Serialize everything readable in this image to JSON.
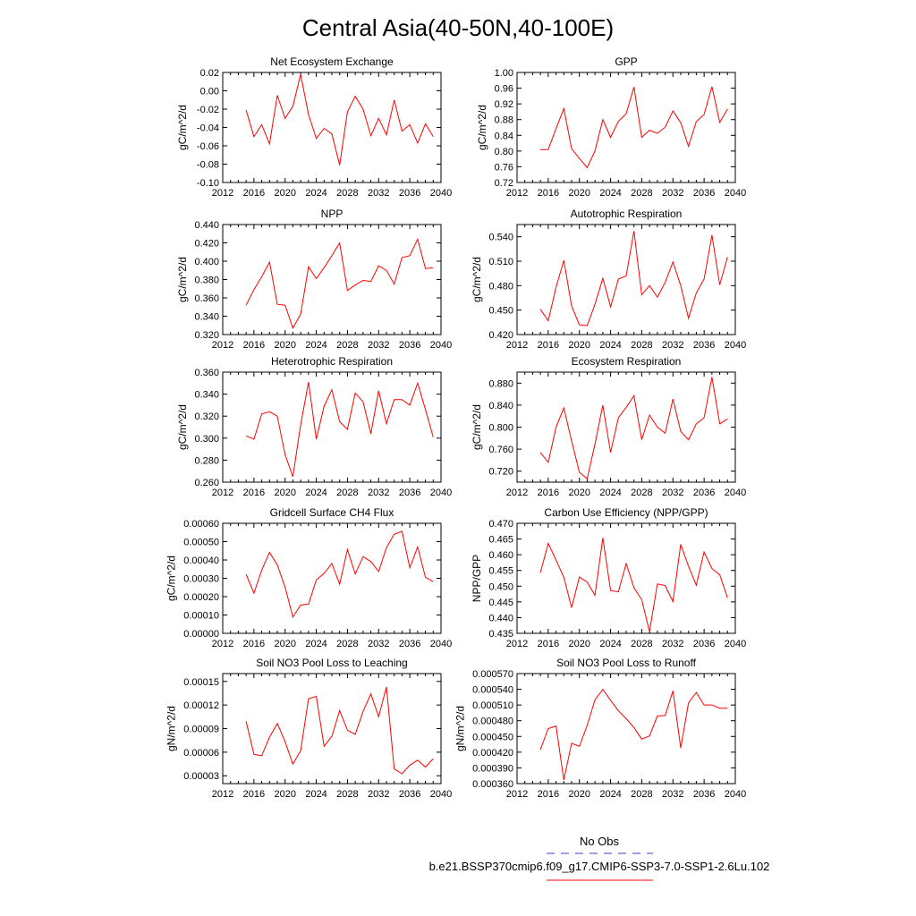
{
  "figure": {
    "title": "Central Asia(40-50N,40-100E)"
  },
  "legend": {
    "entries": [
      {
        "label": "No Obs",
        "color": "#3b3bd0",
        "dashed": true
      },
      {
        "label": "b.e21.BSSP370cmip6.f09_g17.CMIP6-SSP3-7.0-SSP1-2.6Lu.102",
        "color": "#ff0000",
        "dashed": false
      }
    ]
  },
  "chart_data": [
    {
      "type": "line",
      "title": "Net Ecosystem Exchange",
      "ylabel": "gC/m^2/d",
      "xlim": [
        2012,
        2040
      ],
      "xticks": [
        "2012",
        "2016",
        "2020",
        "2024",
        "2028",
        "2032",
        "2036",
        "2040"
      ],
      "ylim": [
        -0.1,
        0.02
      ],
      "yticks": [
        "-0.10",
        "-0.08",
        "-0.06",
        "-0.04",
        "-0.02",
        "0.00",
        "0.02"
      ],
      "series": [
        {
          "color": "#ff0000",
          "x": [
            2015,
            2016,
            2017,
            2018,
            2019,
            2020,
            2021,
            2022,
            2023,
            2024,
            2025,
            2026,
            2027,
            2028,
            2029,
            2030,
            2031,
            2032,
            2033,
            2034,
            2035,
            2036,
            2037,
            2038,
            2039
          ],
          "y": [
            -0.021,
            -0.05,
            -0.037,
            -0.058,
            -0.005,
            -0.03,
            -0.017,
            0.018,
            -0.026,
            -0.052,
            -0.041,
            -0.047,
            -0.081,
            -0.023,
            -0.006,
            -0.02,
            -0.049,
            -0.03,
            -0.048,
            -0.01,
            -0.044,
            -0.037,
            -0.057,
            -0.036,
            -0.05
          ]
        }
      ]
    },
    {
      "type": "line",
      "title": "GPP",
      "ylabel": "gC/m^2/d",
      "xlim": [
        2012,
        2040
      ],
      "xticks": [
        "2012",
        "2016",
        "2020",
        "2024",
        "2028",
        "2032",
        "2036",
        "2040"
      ],
      "ylim": [
        0.72,
        1.0
      ],
      "yticks": [
        "0.72",
        "0.76",
        "0.80",
        "0.84",
        "0.88",
        "0.92",
        "0.96",
        "1.00"
      ],
      "series": [
        {
          "color": "#ff0000",
          "x": [
            2015,
            2016,
            2017,
            2018,
            2019,
            2020,
            2021,
            2022,
            2023,
            2024,
            2025,
            2026,
            2027,
            2028,
            2029,
            2030,
            2031,
            2032,
            2033,
            2034,
            2035,
            2036,
            2037,
            2038,
            2039
          ],
          "y": [
            0.803,
            0.804,
            0.857,
            0.908,
            0.806,
            0.781,
            0.758,
            0.8,
            0.88,
            0.835,
            0.876,
            0.895,
            0.963,
            0.835,
            0.853,
            0.845,
            0.861,
            0.902,
            0.872,
            0.812,
            0.875,
            0.893,
            0.964,
            0.873,
            0.907
          ]
        }
      ]
    },
    {
      "type": "line",
      "title": "NPP",
      "ylabel": "gC/m^2/d",
      "xlim": [
        2012,
        2040
      ],
      "xticks": [
        "2012",
        "2016",
        "2020",
        "2024",
        "2028",
        "2032",
        "2036",
        "2040"
      ],
      "ylim": [
        0.32,
        0.44
      ],
      "yticks": [
        "0.320",
        "0.340",
        "0.360",
        "0.380",
        "0.400",
        "0.420",
        "0.440"
      ],
      "series": [
        {
          "color": "#ff0000",
          "x": [
            2015,
            2016,
            2017,
            2018,
            2019,
            2020,
            2021,
            2022,
            2023,
            2024,
            2025,
            2026,
            2027,
            2028,
            2029,
            2030,
            2031,
            2032,
            2033,
            2034,
            2035,
            2036,
            2037,
            2038,
            2039
          ],
          "y": [
            0.352,
            0.369,
            0.383,
            0.399,
            0.353,
            0.352,
            0.327,
            0.342,
            0.394,
            0.381,
            0.393,
            0.406,
            0.42,
            0.368,
            0.374,
            0.379,
            0.378,
            0.395,
            0.39,
            0.375,
            0.404,
            0.406,
            0.424,
            0.392,
            0.393
          ]
        }
      ]
    },
    {
      "type": "line",
      "title": "Autotrophic Respiration",
      "ylabel": "gC/m^2/d",
      "xlim": [
        2012,
        2040
      ],
      "xticks": [
        "2012",
        "2016",
        "2020",
        "2024",
        "2028",
        "2032",
        "2036",
        "2040"
      ],
      "ylim": [
        0.42,
        0.555
      ],
      "yticks": [
        "0.420",
        "0.450",
        "0.480",
        "0.510",
        "0.540"
      ],
      "series": [
        {
          "color": "#ff0000",
          "x": [
            2015,
            2016,
            2017,
            2018,
            2019,
            2020,
            2021,
            2022,
            2023,
            2024,
            2025,
            2026,
            2027,
            2028,
            2029,
            2030,
            2031,
            2032,
            2033,
            2034,
            2035,
            2036,
            2037,
            2038,
            2039
          ],
          "y": [
            0.451,
            0.437,
            0.478,
            0.511,
            0.455,
            0.432,
            0.431,
            0.457,
            0.489,
            0.454,
            0.488,
            0.492,
            0.547,
            0.469,
            0.48,
            0.466,
            0.484,
            0.509,
            0.48,
            0.44,
            0.471,
            0.488,
            0.542,
            0.481,
            0.515
          ]
        }
      ]
    },
    {
      "type": "line",
      "title": "Heterotrophic Respiration",
      "ylabel": "gC/m^2/d",
      "xlim": [
        2012,
        2040
      ],
      "xticks": [
        "2012",
        "2016",
        "2020",
        "2024",
        "2028",
        "2032",
        "2036",
        "2040"
      ],
      "ylim": [
        0.26,
        0.36
      ],
      "yticks": [
        "0.260",
        "0.280",
        "0.300",
        "0.320",
        "0.340",
        "0.360"
      ],
      "series": [
        {
          "color": "#ff0000",
          "x": [
            2015,
            2016,
            2017,
            2018,
            2019,
            2020,
            2021,
            2022,
            2023,
            2024,
            2025,
            2026,
            2027,
            2028,
            2029,
            2030,
            2031,
            2032,
            2033,
            2034,
            2035,
            2036,
            2037,
            2038,
            2039
          ],
          "y": [
            0.302,
            0.299,
            0.322,
            0.324,
            0.32,
            0.285,
            0.265,
            0.312,
            0.351,
            0.299,
            0.329,
            0.344,
            0.315,
            0.308,
            0.341,
            0.333,
            0.304,
            0.343,
            0.313,
            0.335,
            0.335,
            0.33,
            0.35,
            0.326,
            0.301
          ]
        }
      ]
    },
    {
      "type": "line",
      "title": "Ecosystem Respiration",
      "ylabel": "gC/m^2/d",
      "xlim": [
        2012,
        2040
      ],
      "xticks": [
        "2012",
        "2016",
        "2020",
        "2024",
        "2028",
        "2032",
        "2036",
        "2040"
      ],
      "ylim": [
        0.7,
        0.9
      ],
      "yticks": [
        "0.720",
        "0.760",
        "0.800",
        "0.840",
        "0.880"
      ],
      "series": [
        {
          "color": "#ff0000",
          "x": [
            2015,
            2016,
            2017,
            2018,
            2019,
            2020,
            2021,
            2022,
            2023,
            2024,
            2025,
            2026,
            2027,
            2028,
            2029,
            2030,
            2031,
            2032,
            2033,
            2034,
            2035,
            2036,
            2037,
            2038,
            2039
          ],
          "y": [
            0.754,
            0.736,
            0.8,
            0.835,
            0.775,
            0.718,
            0.706,
            0.769,
            0.84,
            0.754,
            0.817,
            0.836,
            0.857,
            0.777,
            0.822,
            0.8,
            0.789,
            0.851,
            0.792,
            0.777,
            0.806,
            0.817,
            0.891,
            0.806,
            0.815
          ]
        }
      ]
    },
    {
      "type": "line",
      "title": "Gridcell Surface CH4 Flux",
      "ylabel": "gC/m^2/d",
      "xlim": [
        2012,
        2040
      ],
      "xticks": [
        "2012",
        "2016",
        "2020",
        "2024",
        "2028",
        "2032",
        "2036",
        "2040"
      ],
      "ylim": [
        0.0,
        0.0006
      ],
      "yticks": [
        "0.00000",
        "0.00010",
        "0.00020",
        "0.00030",
        "0.00040",
        "0.00050",
        "0.00060"
      ],
      "series": [
        {
          "color": "#ff0000",
          "x": [
            2015,
            2016,
            2017,
            2018,
            2019,
            2020,
            2021,
            2022,
            2023,
            2024,
            2025,
            2026,
            2027,
            2028,
            2029,
            2030,
            2031,
            2032,
            2033,
            2034,
            2035,
            2036,
            2037,
            2038,
            2039
          ],
          "y": [
            0.000322,
            0.000219,
            0.000345,
            0.000441,
            0.000373,
            0.000252,
            8.9e-05,
            0.000154,
            0.000159,
            0.000291,
            0.000327,
            0.000381,
            0.000268,
            0.000457,
            0.000324,
            0.000418,
            0.000391,
            0.000337,
            0.000467,
            0.000541,
            0.000556,
            0.000358,
            0.000471,
            0.000306,
            0.000282
          ]
        }
      ]
    },
    {
      "type": "line",
      "title": "Carbon Use Efficiency (NPP/GPP)",
      "ylabel": "NPP/GPP",
      "xlim": [
        2012,
        2040
      ],
      "xticks": [
        "2012",
        "2016",
        "2020",
        "2024",
        "2028",
        "2032",
        "2036",
        "2040"
      ],
      "ylim": [
        0.435,
        0.47
      ],
      "yticks": [
        "0.435",
        "0.440",
        "0.445",
        "0.450",
        "0.455",
        "0.460",
        "0.465",
        "0.470"
      ],
      "series": [
        {
          "color": "#ff0000",
          "x": [
            2015,
            2016,
            2017,
            2018,
            2019,
            2020,
            2021,
            2022,
            2023,
            2024,
            2025,
            2026,
            2027,
            2028,
            2029,
            2030,
            2031,
            2032,
            2033,
            2034,
            2035,
            2036,
            2037,
            2038,
            2039
          ],
          "y": [
            0.4543,
            0.4636,
            0.4583,
            0.4528,
            0.4432,
            0.4529,
            0.4513,
            0.4471,
            0.4654,
            0.4486,
            0.4482,
            0.4572,
            0.4495,
            0.4457,
            0.4355,
            0.4507,
            0.4502,
            0.4451,
            0.4633,
            0.4563,
            0.4503,
            0.4609,
            0.4556,
            0.4536,
            0.4463
          ]
        }
      ]
    },
    {
      "type": "line",
      "title": "Soil NO3 Pool Loss to Leaching",
      "ylabel": "gN/m^2/d",
      "xlim": [
        2012,
        2040
      ],
      "xticks": [
        "2012",
        "2016",
        "2020",
        "2024",
        "2028",
        "2032",
        "2036",
        "2040"
      ],
      "ylim": [
        2e-05,
        0.00016
      ],
      "yticks": [
        "0.00003",
        "0.00006",
        "0.00009",
        "0.00012",
        "0.00015"
      ],
      "series": [
        {
          "color": "#ff0000",
          "x": [
            2015,
            2016,
            2017,
            2018,
            2019,
            2020,
            2021,
            2022,
            2023,
            2024,
            2025,
            2026,
            2027,
            2028,
            2029,
            2030,
            2031,
            2032,
            2033,
            2034,
            2035,
            2036,
            2037,
            2038,
            2039
          ],
          "y": [
            9.95e-05,
            5.71e-05,
            5.56e-05,
            7.91e-05,
            9.65e-05,
            7.34e-05,
            4.48e-05,
            6.18e-05,
            0.000128,
            0.000131,
            6.75e-05,
            8.02e-05,
            0.000113,
            8.8e-05,
            8.26e-05,
            0.000112,
            0.000134,
            0.000105,
            0.000143,
            3.87e-05,
            3.25e-05,
            4.34e-05,
            4.98e-05,
            4.11e-05,
            5.18e-05
          ]
        }
      ]
    },
    {
      "type": "line",
      "title": "Soil NO3 Pool Loss to Runoff",
      "ylabel": "gN/m^2/d",
      "xlim": [
        2012,
        2040
      ],
      "xticks": [
        "2012",
        "2016",
        "2020",
        "2024",
        "2028",
        "2032",
        "2036",
        "2040"
      ],
      "ylim": [
        0.00036,
        0.00057
      ],
      "yticks": [
        "0.000360",
        "0.000390",
        "0.000420",
        "0.000450",
        "0.000480",
        "0.000510",
        "0.000540",
        "0.000570"
      ],
      "series": [
        {
          "color": "#ff0000",
          "x": [
            2015,
            2016,
            2017,
            2018,
            2019,
            2020,
            2021,
            2022,
            2023,
            2024,
            2025,
            2026,
            2027,
            2028,
            2029,
            2030,
            2031,
            2032,
            2033,
            2034,
            2035,
            2036,
            2037,
            2038,
            2039
          ],
          "y": [
            0.000425,
            0.000465,
            0.00047,
            0.000367,
            0.000437,
            0.000431,
            0.000471,
            0.00052,
            0.00054,
            0.000519,
            0.000499,
            0.000484,
            0.000467,
            0.000445,
            0.000451,
            0.000489,
            0.00049,
            0.000537,
            0.000428,
            0.000514,
            0.000534,
            0.00051,
            0.00051,
            0.000504,
            0.000504
          ]
        }
      ]
    }
  ]
}
